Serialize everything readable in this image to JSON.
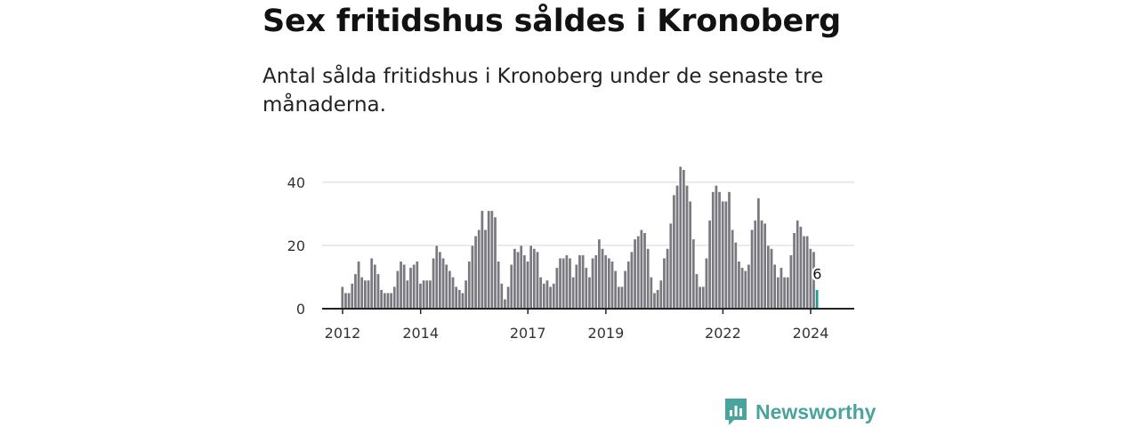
{
  "header": {
    "title": "Sex fritidshus såldes i Kronoberg",
    "subtitle": "Antal sålda fritidshus i Kronoberg under de senaste tre månaderna."
  },
  "brand": {
    "name": "Newsworthy",
    "color": "#4aa49d",
    "icon": "newsworthy-logo-icon"
  },
  "chart_data": {
    "type": "bar",
    "x_start": "2012-01",
    "frequency": "monthly",
    "values": [
      7,
      5,
      5,
      8,
      11,
      15,
      10,
      9,
      9,
      16,
      14,
      11,
      6,
      5,
      5,
      5,
      7,
      12,
      15,
      14,
      9,
      13,
      14,
      15,
      8,
      9,
      9,
      9,
      16,
      20,
      18,
      16,
      14,
      12,
      10,
      7,
      6,
      5,
      9,
      15,
      20,
      23,
      25,
      31,
      25,
      31,
      31,
      29,
      15,
      8,
      3,
      7,
      14,
      19,
      18,
      20,
      17,
      15,
      20,
      19,
      18,
      10,
      8,
      9,
      7,
      8,
      13,
      16,
      16,
      17,
      16,
      10,
      14,
      17,
      17,
      13,
      10,
      16,
      17,
      22,
      19,
      17,
      16,
      15,
      12,
      7,
      7,
      12,
      15,
      18,
      22,
      23,
      25,
      24,
      19,
      10,
      5,
      6,
      9,
      16,
      19,
      27,
      36,
      39,
      45,
      44,
      39,
      34,
      22,
      11,
      7,
      7,
      16,
      28,
      37,
      39,
      37,
      34,
      34,
      37,
      25,
      21,
      15,
      13,
      12,
      14,
      25,
      28,
      35,
      28,
      27,
      20,
      19,
      14,
      10,
      13,
      10,
      10,
      17,
      24,
      28,
      26,
      23,
      23,
      19,
      18,
      6
    ],
    "highlight_index": 146,
    "highlight_label": "6",
    "xticks": [
      {
        "label": "2012",
        "at": "2012-01"
      },
      {
        "label": "2014",
        "at": "2014-01"
      },
      {
        "label": "2017",
        "at": "2016-10"
      },
      {
        "label": "2019",
        "at": "2018-10"
      },
      {
        "label": "2022",
        "at": "2021-10"
      },
      {
        "label": "2024",
        "at": "2024-01"
      }
    ],
    "yticks": [
      0,
      20,
      40
    ],
    "ylim": [
      0,
      47
    ],
    "xlabel": "",
    "ylabel": "",
    "grid": true,
    "colors": {
      "bar": "#7a7980",
      "bar_stroke": "#ffffff",
      "highlight": "#1d9a96",
      "grid": "#d6d6d6",
      "axis": "#222222"
    }
  }
}
